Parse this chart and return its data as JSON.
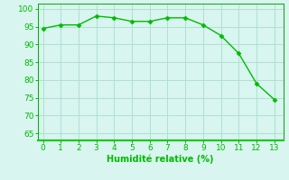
{
  "x": [
    0,
    1,
    2,
    3,
    4,
    5,
    6,
    7,
    8,
    9,
    10,
    11,
    12,
    13
  ],
  "y": [
    94.5,
    95.5,
    95.5,
    98.0,
    97.5,
    96.5,
    96.5,
    97.5,
    97.5,
    95.5,
    92.5,
    87.5,
    79.0,
    74.5
  ],
  "line_color": "#00bb00",
  "marker": "D",
  "marker_size": 2.5,
  "line_width": 1.0,
  "xlabel": "Humidité relative (%)",
  "xlabel_color": "#00bb00",
  "xlabel_fontsize": 7,
  "ylabel_ticks": [
    65,
    70,
    75,
    80,
    85,
    90,
    95,
    100
  ],
  "xticks": [
    0,
    1,
    2,
    3,
    4,
    5,
    6,
    7,
    8,
    9,
    10,
    11,
    12,
    13
  ],
  "ylim": [
    63,
    101.5
  ],
  "xlim": [
    -0.3,
    13.5
  ],
  "background_color": "#d8f5f0",
  "grid_color": "#aaddcc",
  "tick_color": "#00bb00",
  "tick_fontsize": 6.5,
  "spine_color": "#00aa00",
  "bottom_spine_color": "#00cc00"
}
